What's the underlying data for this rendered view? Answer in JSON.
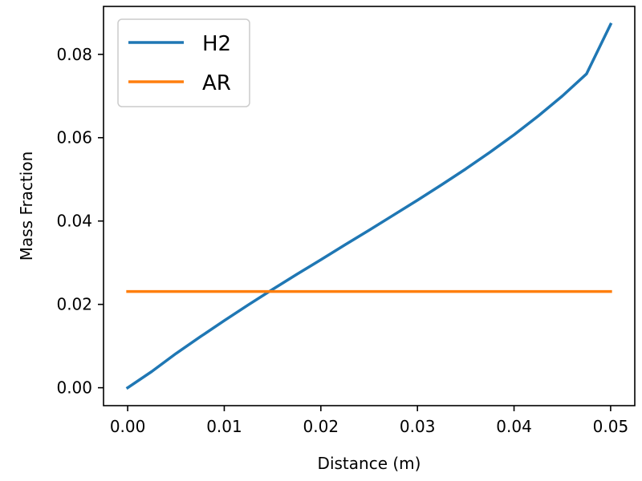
{
  "chart_data": {
    "type": "line",
    "title": "",
    "xlabel": "Distance (m)",
    "ylabel": "Mass Fraction",
    "xlim": [
      -0.0025,
      0.0525
    ],
    "ylim": [
      -0.0043,
      0.0915
    ],
    "xticks": [
      0.0,
      0.01,
      0.02,
      0.03,
      0.04,
      0.05
    ],
    "xtick_labels": [
      "0.00",
      "0.01",
      "0.02",
      "0.03",
      "0.04",
      "0.05"
    ],
    "yticks": [
      0.0,
      0.02,
      0.04,
      0.06,
      0.08
    ],
    "ytick_labels": [
      "0.00",
      "0.02",
      "0.04",
      "0.06",
      "0.08"
    ],
    "grid": false,
    "legend_position": "top-left",
    "series": [
      {
        "name": "H2",
        "color": "#1f77b4",
        "x": [
          0.0,
          0.0025,
          0.005,
          0.0075,
          0.01,
          0.0125,
          0.015,
          0.0175,
          0.02,
          0.0225,
          0.025,
          0.0275,
          0.03,
          0.0325,
          0.035,
          0.0375,
          0.04,
          0.0425,
          0.045,
          0.0475,
          0.05
        ],
        "y": [
          0.0,
          0.0039,
          0.0082,
          0.0122,
          0.0161,
          0.0199,
          0.0236,
          0.0272,
          0.0307,
          0.0343,
          0.0378,
          0.0414,
          0.045,
          0.0487,
          0.0525,
          0.0565,
          0.0607,
          0.0652,
          0.07,
          0.0753,
          0.0872
        ]
      },
      {
        "name": "AR",
        "color": "#ff7f0e",
        "x": [
          0.0,
          0.05
        ],
        "y": [
          0.0231,
          0.0231
        ]
      }
    ]
  }
}
